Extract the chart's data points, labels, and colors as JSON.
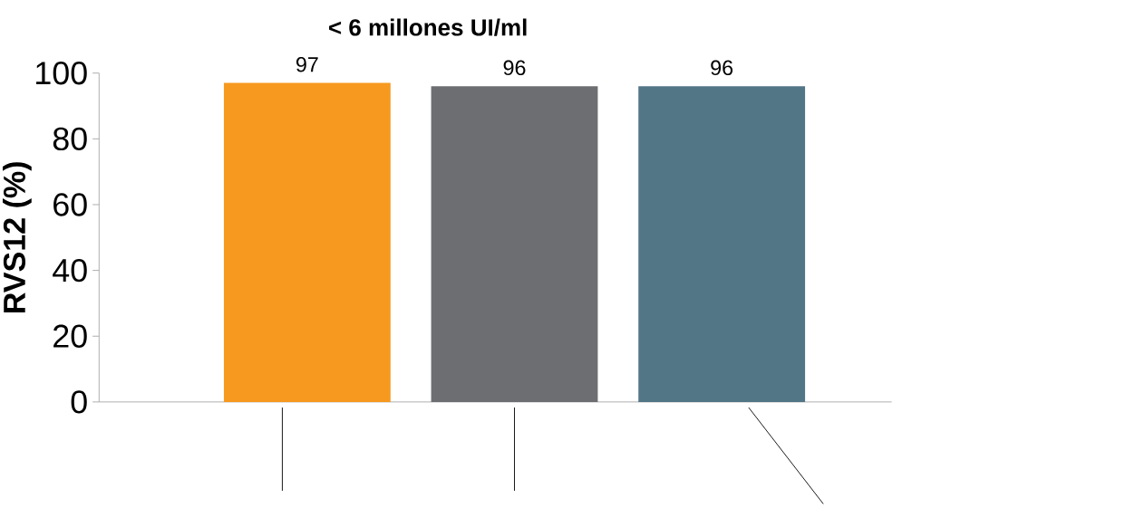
{
  "chart_data": {
    "type": "bar",
    "title": "< 6 millones UI/ml",
    "ylabel": "RVS12 (%)",
    "categories": [
      null,
      null,
      null
    ],
    "values": [
      97,
      96,
      96
    ],
    "colors": [
      "#f7991f",
      "#6d6e71",
      "#527686"
    ],
    "ylim": [
      0,
      100
    ],
    "yticks": [
      0,
      20,
      40,
      60,
      80,
      100
    ],
    "data_labels": true
  }
}
